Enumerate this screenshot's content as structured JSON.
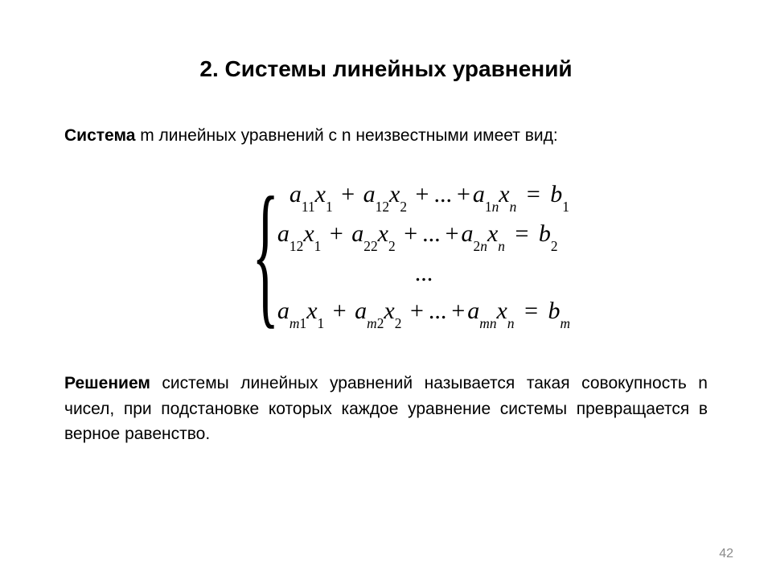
{
  "title": "2. Системы линейных уравнений",
  "intro_bold": "Система",
  "intro_rest": " m линейных уравнений с n неизвестными имеет вид:",
  "def_bold": "Решением",
  "def_rest": " системы линейных уравнений называется такая совокупность n чисел, при подстановке которых каждое уравнение системы превращается в верное равенство.",
  "pagenum": "42",
  "eq": {
    "row1_indent": "  ",
    "a": "a",
    "x": "x",
    "b": "b",
    "plus": "+",
    "equals": "=",
    "dots": "...",
    "s11": "11",
    "s12": "12",
    "s1n": "1",
    "s22": "22",
    "s2n": "2",
    "sm1": "m",
    "sm2": "m",
    "smn": "mn",
    "s1": "1",
    "s2": "2",
    "sn": "n",
    "sm": "m",
    "n": "n"
  }
}
